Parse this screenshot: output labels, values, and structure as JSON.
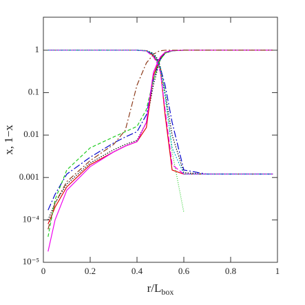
{
  "chart_data": {
    "type": "line",
    "xlabel": "r/L",
    "xlabel_sub": "box",
    "ylabel": "x, 1−x",
    "log_y": true,
    "xlim": [
      0,
      1
    ],
    "ylim": [
      1e-05,
      6
    ],
    "xticks": [
      0,
      0.2,
      0.4,
      0.6,
      0.8,
      1
    ],
    "yticks": [
      {
        "value": 1e-05,
        "label": "10⁻⁵"
      },
      {
        "value": 0.0001,
        "label": "10⁻⁴"
      },
      0.001,
      0.01,
      0.1,
      1
    ],
    "x": [
      0.02,
      0.05,
      0.1,
      0.2,
      0.3,
      0.35,
      0.4,
      0.44,
      0.47,
      0.49,
      0.5,
      0.52,
      0.55,
      0.6,
      0.7,
      0.8,
      0.9,
      0.98
    ],
    "series": [
      {
        "color": "#000000",
        "dash": "1.5,2",
        "values": [
          0.0001,
          0.00025,
          0.0007,
          0.0022,
          0.0045,
          0.006,
          0.0075,
          0.02,
          0.15,
          0.4,
          0.6,
          0.85,
          0.97,
          1,
          1,
          1,
          1,
          1
        ]
      },
      {
        "color": "#000000",
        "dash": "1.5,2",
        "values": [
          1,
          1,
          1,
          1,
          1,
          1,
          1,
          0.98,
          0.85,
          0.6,
          0.4,
          0.1,
          0.01,
          0.0013,
          0.0012,
          0.0012,
          0.0012,
          0.0012
        ]
      },
      {
        "color": "#e00000",
        "dash": "",
        "values": [
          8e-05,
          0.0002,
          0.0006,
          0.002,
          0.004,
          0.0055,
          0.007,
          0.015,
          0.25,
          0.5,
          0.65,
          0.9,
          0.98,
          1,
          1,
          1,
          1,
          1
        ]
      },
      {
        "color": "#e00000",
        "dash": "",
        "values": [
          1,
          1,
          1,
          1,
          1,
          1,
          1,
          0.97,
          0.75,
          0.5,
          0.35,
          0.03,
          0.0015,
          0.0012,
          0.0012,
          0.0012,
          0.0012,
          0.0012
        ]
      },
      {
        "color": "#0000cc",
        "dash": "10,3,2,3",
        "values": [
          0.00017,
          0.0004,
          0.0012,
          0.003,
          0.0065,
          0.009,
          0.012,
          0.03,
          0.2,
          0.45,
          0.62,
          0.85,
          0.97,
          1,
          1,
          1,
          1,
          1
        ]
      },
      {
        "color": "#0000cc",
        "dash": "10,3,2,3",
        "values": [
          1,
          1,
          1,
          1,
          1,
          1,
          1,
          0.97,
          0.8,
          0.55,
          0.38,
          0.15,
          0.02,
          0.0015,
          0.0012,
          0.0012,
          0.0012,
          0.0012
        ]
      },
      {
        "color": "#22cc22",
        "dash": "5,3",
        "values": [
          4e-05,
          0.0003,
          0.0015,
          0.005,
          0.009,
          0.012,
          0.016,
          0.04,
          0.2,
          0.45,
          0.6,
          0.85,
          0.97,
          1,
          1,
          1,
          1,
          1
        ]
      },
      {
        "color": "#22cc22",
        "dash": "1,2",
        "values": [
          1,
          1,
          1,
          1,
          1,
          1,
          1,
          0.97,
          0.8,
          0.55,
          0.4,
          0.1,
          0.004,
          0.00015,
          null,
          null,
          null,
          null
        ]
      },
      {
        "color": "#ee00ee",
        "dash": "",
        "values": [
          1.8e-05,
          0.0001,
          0.0005,
          0.0018,
          0.004,
          0.0055,
          0.007,
          0.02,
          0.3,
          0.55,
          0.7,
          0.9,
          0.98,
          1,
          1,
          1,
          1,
          1
        ]
      },
      {
        "color": "#ee00ee",
        "dash": "8,3",
        "values": [
          1,
          1,
          1,
          1,
          1,
          1,
          1,
          0.96,
          0.7,
          0.45,
          0.3,
          0.04,
          0.002,
          0.0012,
          0.0012,
          0.0012,
          0.0012,
          0.0012
        ]
      },
      {
        "color": "#8b3a1a",
        "dash": "8,3,2,3",
        "values": [
          6e-05,
          0.00025,
          0.0008,
          0.0025,
          0.006,
          0.013,
          0.15,
          0.5,
          0.8,
          0.93,
          0.97,
          1,
          1,
          1,
          1,
          1,
          1,
          1
        ]
      },
      {
        "color": "#00aacc",
        "dash": "2,2",
        "values": [
          1,
          1,
          1,
          1,
          1,
          1,
          1,
          0.97,
          0.8,
          0.5,
          0.35,
          0.08,
          0.005,
          0.0012,
          0.0012,
          0.0012,
          0.0012,
          0.0012
        ]
      }
    ]
  }
}
